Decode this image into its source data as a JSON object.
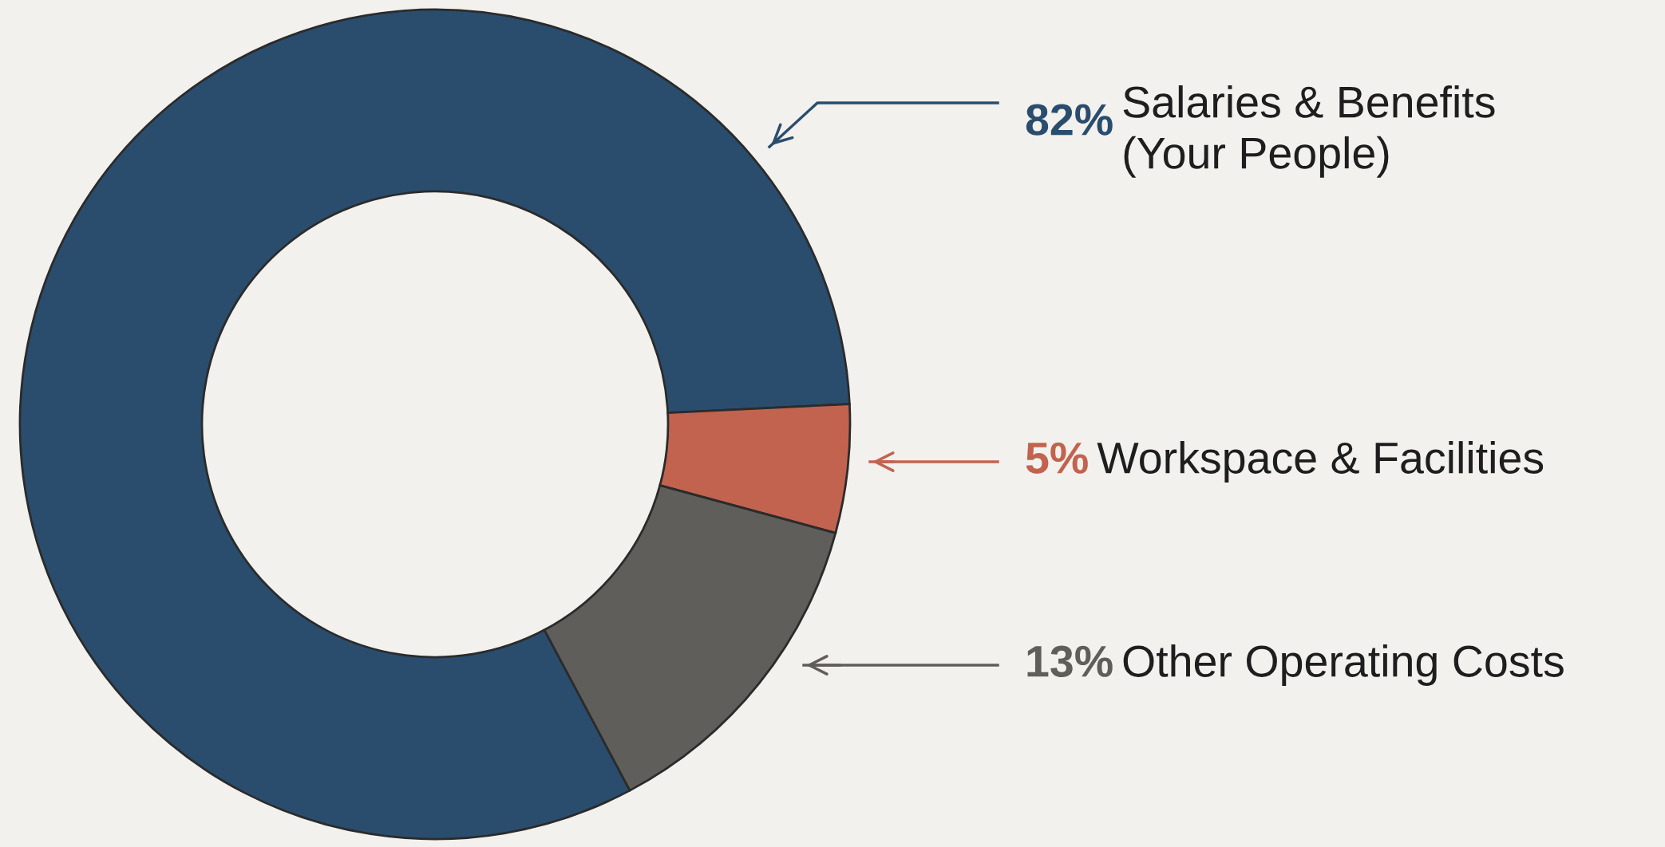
{
  "chart_data": {
    "type": "donut",
    "categories": [
      "Salaries & Benefits\n(Your People)",
      "Workspace & Facilities",
      "Other Operating Costs"
    ],
    "values": [
      82,
      5,
      13
    ],
    "colors": [
      "#2a4d6e",
      "#c2634f",
      "#605e5b"
    ],
    "value_labels": [
      "82%",
      "5%",
      "13%"
    ]
  }
}
